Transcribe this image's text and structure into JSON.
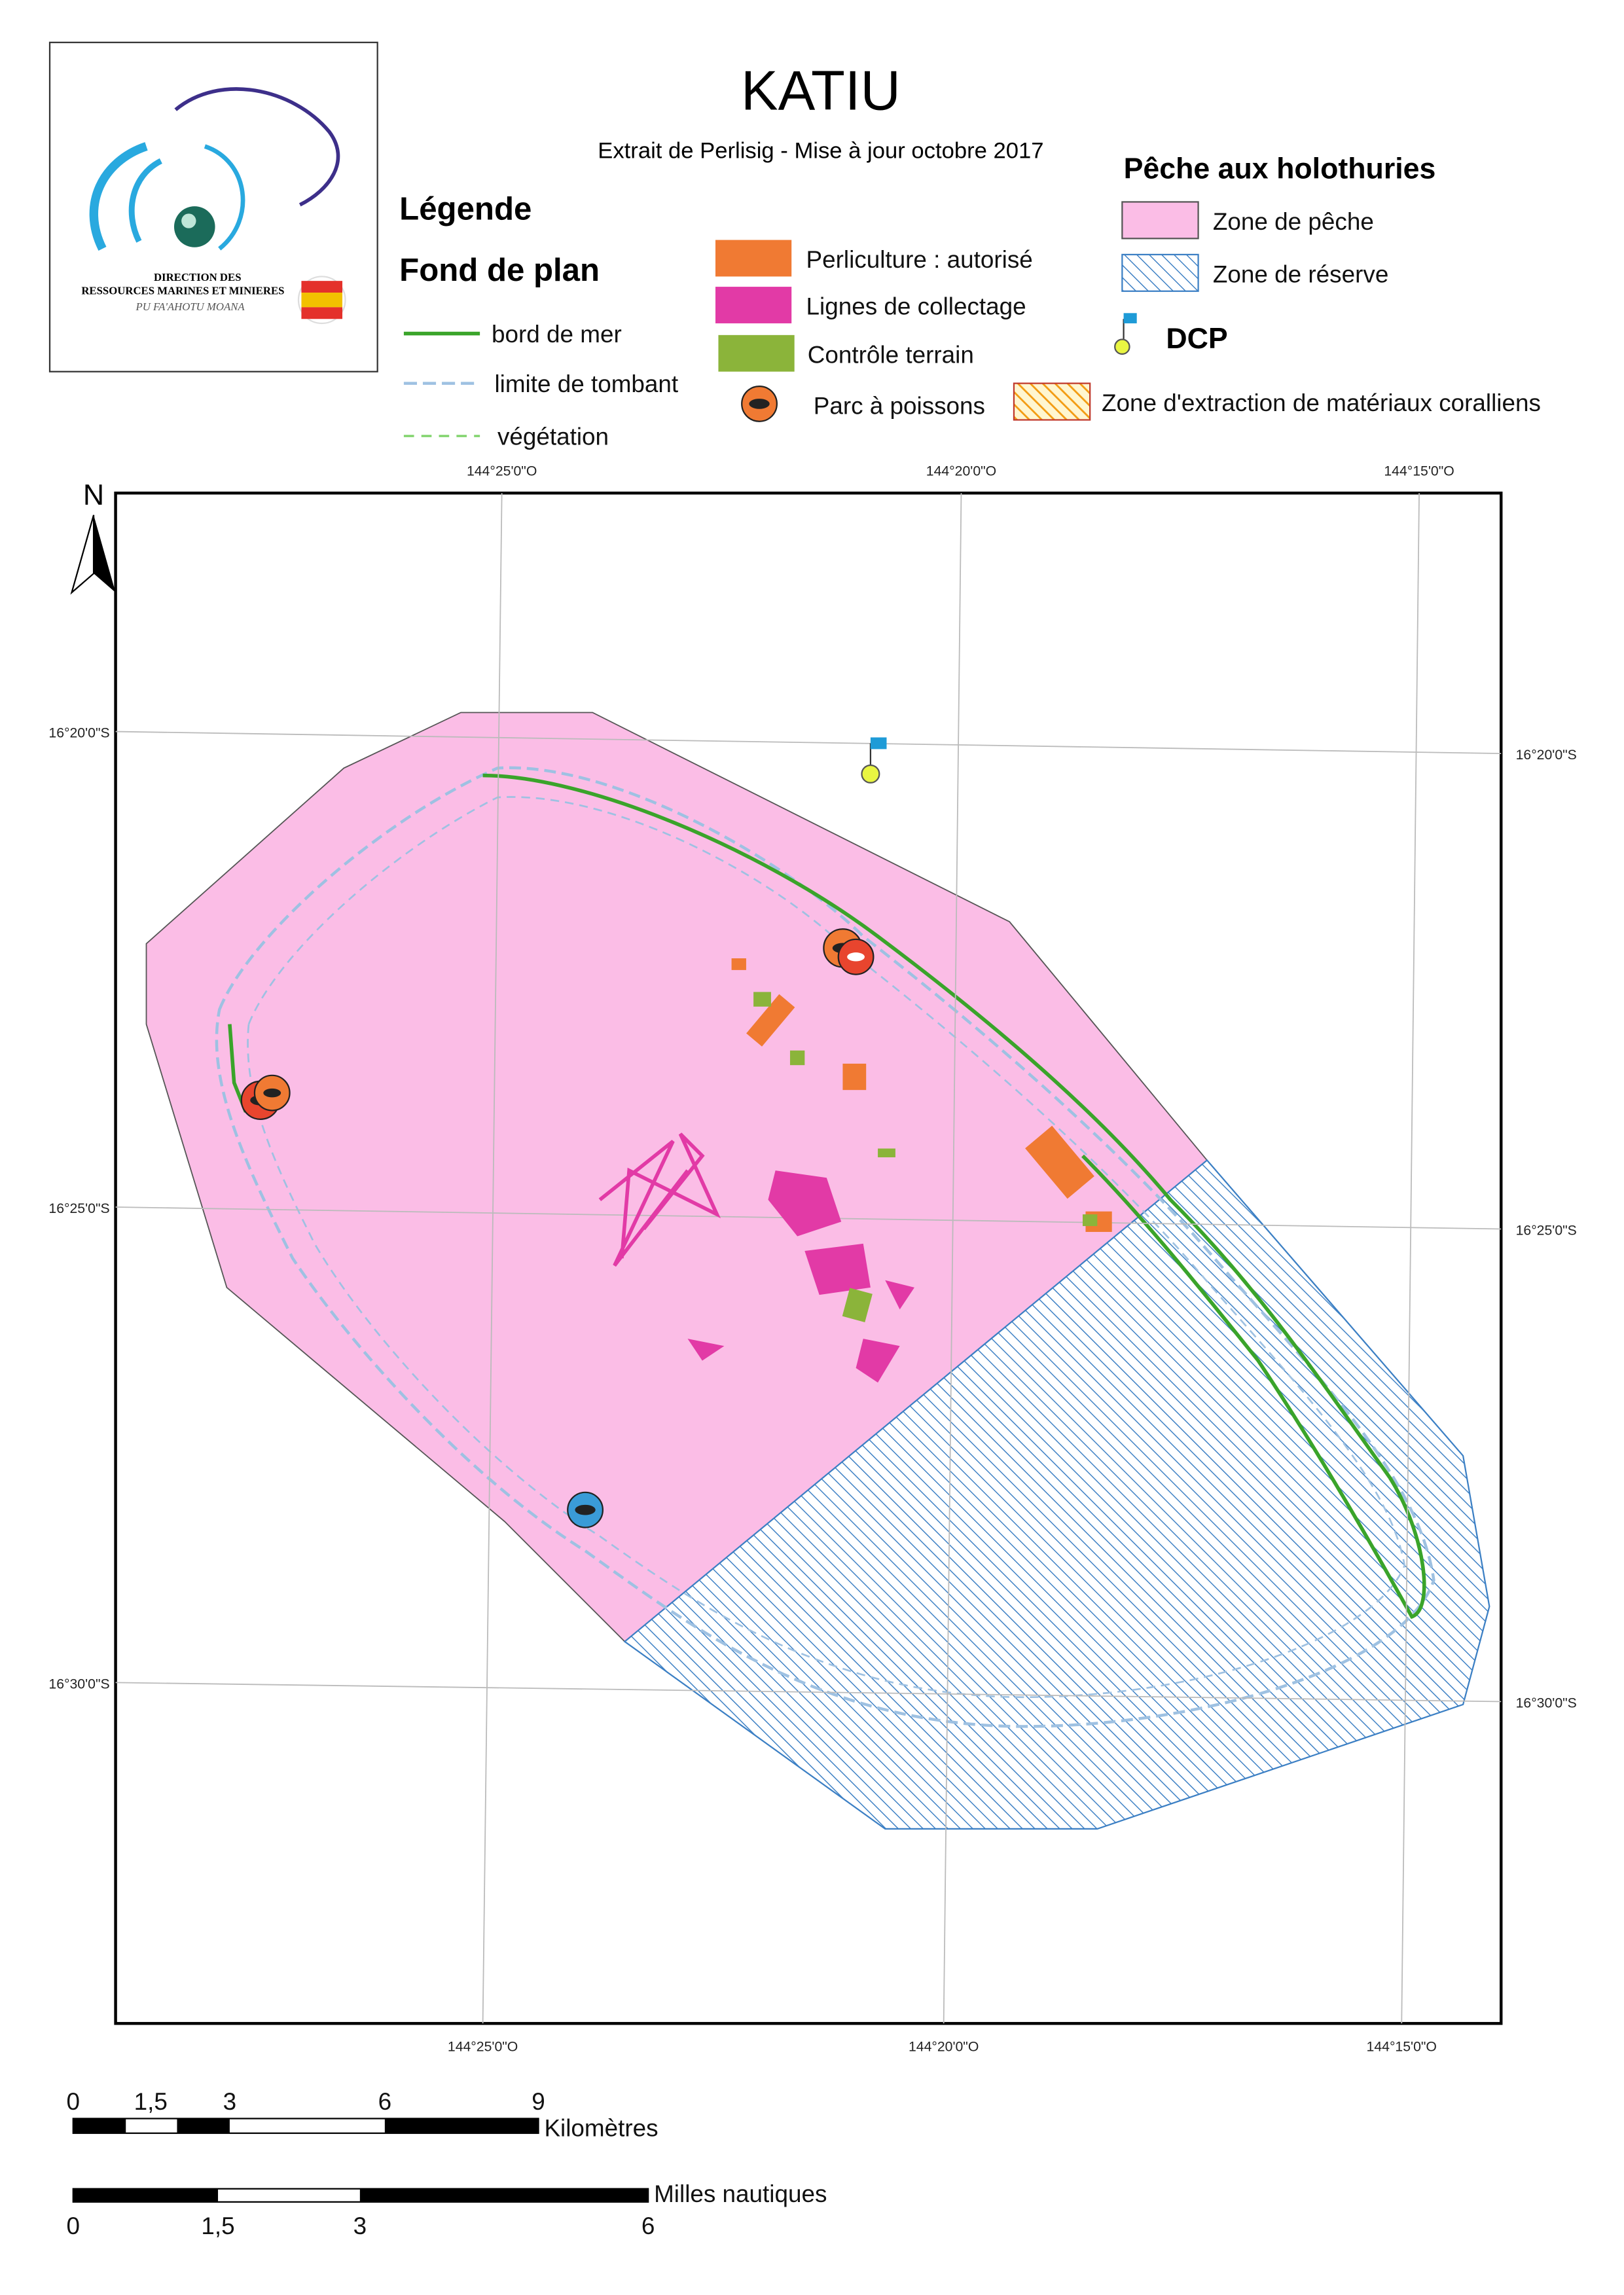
{
  "header": {
    "title": "KATIU",
    "subtitle": "Extrait de Perlisig - Mise à jour octobre 2017"
  },
  "logo": {
    "line1": "DIRECTION DES",
    "line2": "RESSOURCES MARINES ET MINIERES",
    "line3": "PU FA'AHOTU MOANA"
  },
  "legend": {
    "title": "Légende",
    "base_map": {
      "title": "Fond de plan",
      "items": [
        "bord de mer",
        "limite de tombant",
        "végétation"
      ]
    },
    "activities": [
      "Perliculture : autorisé",
      "Lignes de collectage",
      "Contrôle terrain",
      "Parc à poissons"
    ],
    "holothurians": {
      "title": "Pêche aux holothuries",
      "items": [
        "Zone de pêche",
        "Zone de réserve"
      ]
    },
    "dcp": "DCP",
    "extraction": "Zone d'extraction de matériaux coralliens"
  },
  "map": {
    "north": "N",
    "top_labels": [
      "144°25'0\"O",
      "144°20'0\"O",
      "144°15'0\"O"
    ],
    "bottom_labels": [
      "144°25'0\"O",
      "144°20'0\"O",
      "144°15'0\"O"
    ],
    "left_labels": [
      "16°20'0\"S",
      "16°25'0\"S",
      "16°30'0\"S"
    ],
    "right_labels": [
      "16°20'0\"S",
      "16°25'0\"S",
      "16°30'0\"S"
    ]
  },
  "scale": {
    "km": {
      "labels": [
        "0",
        "1,5",
        "3",
        "6",
        "9"
      ],
      "unit": "Kilomètres"
    },
    "nm": {
      "labels": [
        "0",
        "1,5",
        "3",
        "6"
      ],
      "unit": "Milles nautiques"
    }
  }
}
